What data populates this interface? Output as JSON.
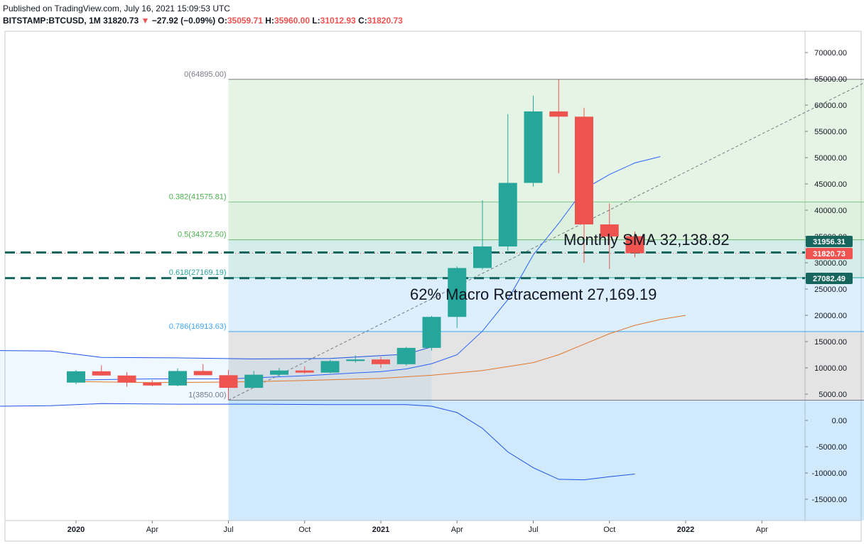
{
  "header": {
    "published": "Published on TradingView.com, July 16, 2021 15:09:53 UTC",
    "symbol": "BITSTAMP:BTCUSD, 1M",
    "last": "31820.73",
    "arrow": "▼",
    "change": "−27.92 (−0.09%)",
    "o_label": "O:",
    "o_value": "35059.71",
    "h_label": "H:",
    "h_value": "35960.00",
    "l_label": "L:",
    "l_value": "31012.93",
    "c_label": "C:",
    "c_value": "31820.73"
  },
  "colors": {
    "up": "#26a69a",
    "down": "#ef5350",
    "sma_fast": "#2962ff",
    "sma_slow": "#e0772e",
    "fib_text": "#4caf50",
    "fib_786": "#42a5f5"
  },
  "chart_data": {
    "type": "candlestick",
    "ylim": [
      -19000,
      76000
    ],
    "x_ticks": [
      "2020",
      "Apr",
      "Jul",
      "Oct",
      "2021",
      "Apr",
      "Jul",
      "Oct",
      "2022",
      "Apr"
    ],
    "y_ticks": [
      "70000.00",
      "65000.00",
      "60000.00",
      "55000.00",
      "50000.00",
      "45000.00",
      "40000.00",
      "35000.00",
      "30000.00",
      "25000.00",
      "20000.00",
      "15000.00",
      "10000.00",
      "5000.00",
      "0.00",
      "-5000.00",
      "-10000.00",
      "-15000.00"
    ],
    "y_tick_values": [
      70000,
      65000,
      60000,
      55000,
      50000,
      45000,
      40000,
      35000,
      30000,
      25000,
      20000,
      15000,
      10000,
      5000,
      0,
      -5000,
      -10000,
      -15000
    ],
    "candles": [
      {
        "m": 0,
        "o": 7200,
        "h": 9600,
        "l": 6900,
        "c": 9350
      },
      {
        "m": 1,
        "o": 9350,
        "h": 10500,
        "l": 8500,
        "c": 8550
      },
      {
        "m": 2,
        "o": 8550,
        "h": 9200,
        "l": 6400,
        "c": 7200
      },
      {
        "m": 3,
        "o": 7200,
        "h": 7700,
        "l": 6500,
        "c": 6650
      },
      {
        "m": 4,
        "o": 6650,
        "h": 9900,
        "l": 6500,
        "c": 9400
      },
      {
        "m": 5,
        "o": 9400,
        "h": 10700,
        "l": 8700,
        "c": 8600
      },
      {
        "m": 6,
        "o": 8600,
        "h": 9600,
        "l": 3850,
        "c": 6200
      },
      {
        "m": 7,
        "o": 6200,
        "h": 9400,
        "l": 6200,
        "c": 8700
      },
      {
        "m": 8,
        "o": 8700,
        "h": 10000,
        "l": 8400,
        "c": 9500
      },
      {
        "m": 9,
        "o": 9500,
        "h": 10300,
        "l": 8900,
        "c": 9100
      },
      {
        "m": 10,
        "o": 9100,
        "h": 11500,
        "l": 9000,
        "c": 11300
      },
      {
        "m": 11,
        "o": 11300,
        "h": 12400,
        "l": 11000,
        "c": 11600
      },
      {
        "m": 12,
        "o": 11600,
        "h": 12100,
        "l": 10000,
        "c": 10700
      },
      {
        "m": 13,
        "o": 10700,
        "h": 14000,
        "l": 10400,
        "c": 13800
      },
      {
        "m": 14,
        "o": 13800,
        "h": 19900,
        "l": 13300,
        "c": 19700
      },
      {
        "m": 15,
        "o": 19700,
        "h": 29300,
        "l": 17600,
        "c": 29000
      },
      {
        "m": 16,
        "o": 29000,
        "h": 41900,
        "l": 28700,
        "c": 33100
      },
      {
        "m": 17,
        "o": 33100,
        "h": 58300,
        "l": 32300,
        "c": 45200
      },
      {
        "m": 18,
        "o": 45200,
        "h": 61800,
        "l": 44500,
        "c": 58800
      },
      {
        "m": 19,
        "o": 58800,
        "h": 64895,
        "l": 47000,
        "c": 57800
      },
      {
        "m": 20,
        "o": 57800,
        "h": 59500,
        "l": 30000,
        "c": 37300
      },
      {
        "m": 21,
        "o": 37300,
        "h": 41300,
        "l": 28800,
        "c": 35000
      },
      {
        "m": 22,
        "o": 35059.71,
        "h": 35960,
        "l": 31012.93,
        "c": 31820.73
      }
    ],
    "sma_fast": [
      [
        0,
        7700
      ],
      [
        3,
        7900
      ],
      [
        6,
        7900
      ],
      [
        9,
        8500
      ],
      [
        12,
        9300
      ],
      [
        13,
        9800
      ],
      [
        14,
        10800
      ],
      [
        15,
        12500
      ],
      [
        16,
        17000
      ],
      [
        17,
        23000
      ],
      [
        18,
        31500
      ],
      [
        19,
        37500
      ],
      [
        20,
        44000
      ],
      [
        21,
        46800
      ],
      [
        22,
        49000
      ],
      [
        23,
        50200
      ]
    ],
    "sma_slow": [
      [
        0,
        7400
      ],
      [
        3,
        7200
      ],
      [
        6,
        7300
      ],
      [
        9,
        7600
      ],
      [
        12,
        8000
      ],
      [
        14,
        8600
      ],
      [
        16,
        9500
      ],
      [
        18,
        11000
      ],
      [
        19,
        12500
      ],
      [
        20,
        14500
      ],
      [
        21,
        16500
      ],
      [
        22,
        18100
      ],
      [
        23,
        19200
      ],
      [
        24,
        20000
      ]
    ],
    "band_upper": [
      [
        -3,
        13300
      ],
      [
        -1,
        13200
      ],
      [
        1,
        12000
      ],
      [
        4,
        11900
      ],
      [
        7,
        11700
      ],
      [
        10,
        11800
      ],
      [
        13,
        12600
      ],
      [
        14,
        14000
      ]
    ],
    "band_lower": [
      [
        -3,
        2700
      ],
      [
        -1,
        2800
      ],
      [
        1,
        3200
      ],
      [
        4,
        3100
      ],
      [
        7,
        3100
      ],
      [
        10,
        3000
      ],
      [
        13,
        3000
      ],
      [
        14,
        2700
      ],
      [
        15,
        1500
      ],
      [
        16,
        -1500
      ],
      [
        17,
        -6000
      ],
      [
        18,
        -9000
      ],
      [
        19,
        -11200
      ],
      [
        20,
        -11300
      ],
      [
        21,
        -10700
      ],
      [
        22,
        -10200
      ]
    ],
    "fib_levels": [
      {
        "label": "0(64895.00)",
        "value": 64895
      },
      {
        "label": "0.382(41575.81)",
        "value": 41575.81
      },
      {
        "label": "0.5(34372.50)",
        "value": 34372.5
      },
      {
        "label": "0.618(27169.19)",
        "value": 27169.19
      },
      {
        "label": "0.786(16913.63)",
        "value": 16913.63
      },
      {
        "label": "1(3850.00)",
        "value": 3850
      }
    ],
    "price_lines": [
      {
        "label": "31956.31",
        "value": 31956.31
      },
      {
        "label": "27082.49",
        "value": 27082.49
      }
    ],
    "last_price": {
      "label": "31820.73",
      "value": 31820.73
    },
    "annotations": [
      {
        "text": "Monthly SMA 32,138.82"
      },
      {
        "text": "62% Macro Retracement 27,169.19"
      }
    ]
  }
}
